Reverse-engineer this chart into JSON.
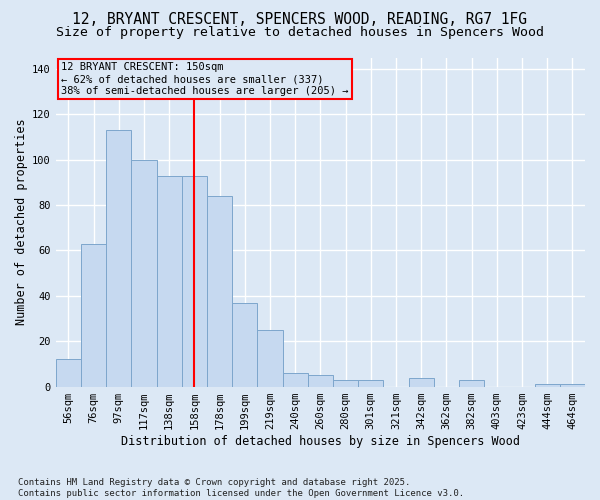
{
  "title_line1": "12, BRYANT CRESCENT, SPENCERS WOOD, READING, RG7 1FG",
  "title_line2": "Size of property relative to detached houses in Spencers Wood",
  "xlabel": "Distribution of detached houses by size in Spencers Wood",
  "ylabel": "Number of detached properties",
  "bar_labels": [
    "56sqm",
    "76sqm",
    "97sqm",
    "117sqm",
    "138sqm",
    "158sqm",
    "178sqm",
    "199sqm",
    "219sqm",
    "240sqm",
    "260sqm",
    "280sqm",
    "301sqm",
    "321sqm",
    "342sqm",
    "362sqm",
    "382sqm",
    "403sqm",
    "423sqm",
    "444sqm",
    "464sqm"
  ],
  "bar_values": [
    12,
    63,
    113,
    100,
    93,
    93,
    84,
    37,
    25,
    6,
    5,
    3,
    3,
    0,
    4,
    0,
    3,
    0,
    0,
    1,
    1
  ],
  "bar_color": "#c6d9f0",
  "bar_edge_color": "#7da6cc",
  "vline_x": 5,
  "vline_color": "red",
  "annotation_title": "12 BRYANT CRESCENT: 150sqm",
  "annotation_line2": "← 62% of detached houses are smaller (337)",
  "annotation_line3": "38% of semi-detached houses are larger (205) →",
  "annotation_box_color": "red",
  "ylim": [
    0,
    145
  ],
  "yticks": [
    0,
    20,
    40,
    60,
    80,
    100,
    120,
    140
  ],
  "footer_line1": "Contains HM Land Registry data © Crown copyright and database right 2025.",
  "footer_line2": "Contains public sector information licensed under the Open Government Licence v3.0.",
  "bg_color": "#dce8f5",
  "plot_bg_color": "#dce8f5",
  "grid_color": "#ffffff",
  "title_fontsize": 10.5,
  "subtitle_fontsize": 9.5,
  "tick_fontsize": 7.5,
  "label_fontsize": 8.5,
  "footer_fontsize": 6.5
}
